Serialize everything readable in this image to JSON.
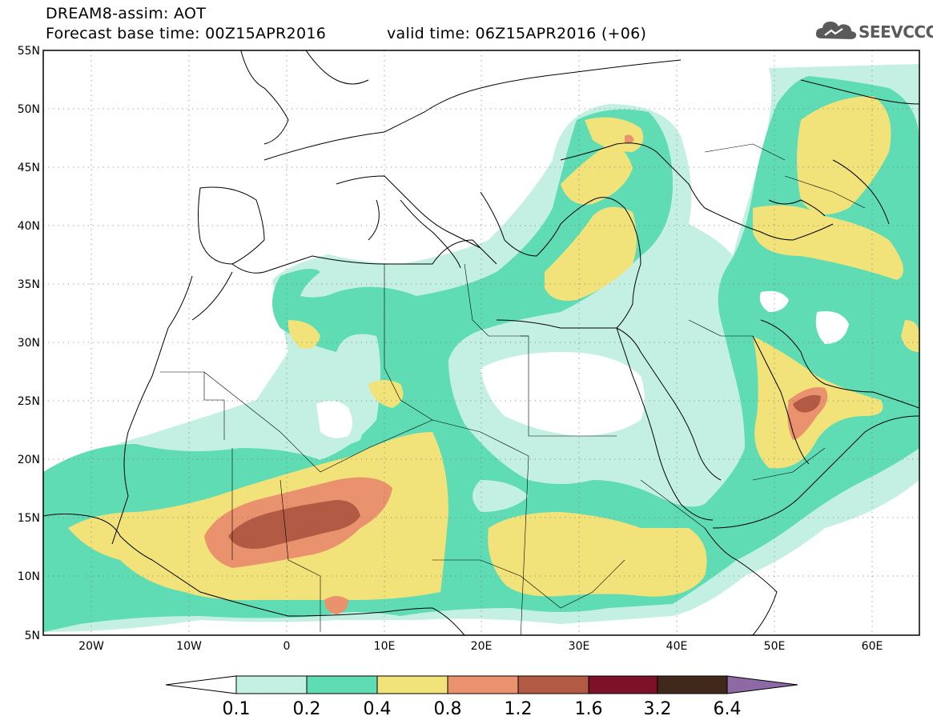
{
  "header": {
    "title_line1": "DREAM8-assim: AOT",
    "title_line2": "Forecast base time: 00Z15APR2016",
    "valid_time": "valid time: 06Z15APR2016 (+06)"
  },
  "logo": {
    "text": "SEEVCCC",
    "icon": "cloud-icon",
    "color": "#5a5a5a"
  },
  "map": {
    "lat_labels": [
      "55N",
      "50N",
      "45N",
      "40N",
      "35N",
      "30N",
      "25N",
      "20N",
      "15N",
      "10N",
      "5N"
    ],
    "lon_labels": [
      "20W",
      "10W",
      "0",
      "10E",
      "20E",
      "30E",
      "40E",
      "50E",
      "60E"
    ]
  },
  "colorbar": {
    "labels": [
      "0.1",
      "0.2",
      "0.4",
      "0.8",
      "1.2",
      "1.6",
      "3.2",
      "6.4"
    ],
    "colors": [
      "#ffffff",
      "#c4f0e4",
      "#5fdcb3",
      "#f2e27a",
      "#e9926d",
      "#b35a45",
      "#7d1128",
      "#40281a",
      "#8e6aa5"
    ]
  }
}
